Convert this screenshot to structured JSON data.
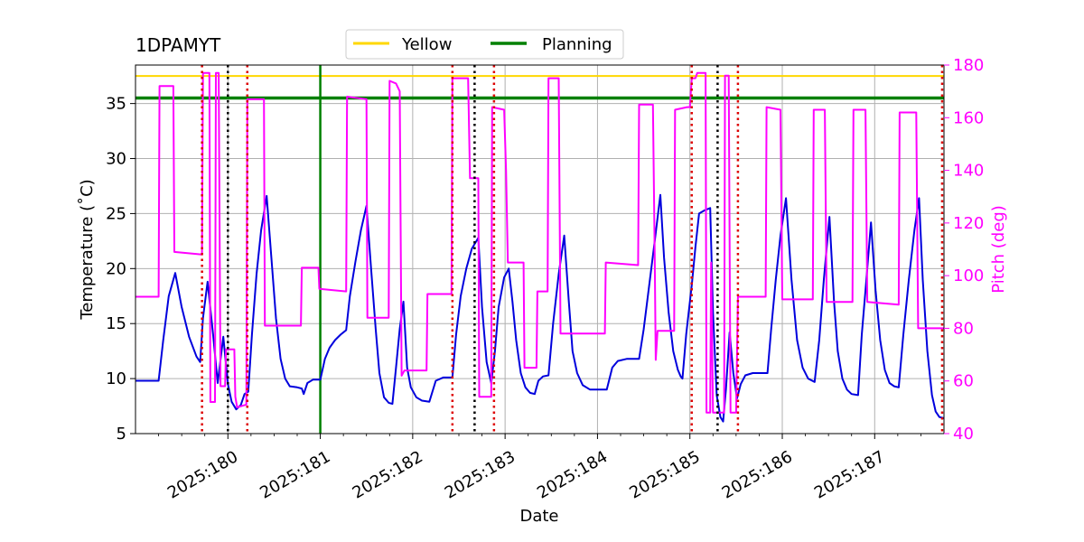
{
  "chart_data": {
    "type": "line",
    "title": "1DPAMYT",
    "xlabel": "Date",
    "ylabel_left": "Temperature ($^\\circ$C)",
    "ylabel_left_display": "Temperature (˚C)",
    "ylabel_right": "Pitch (deg)",
    "xlim": [
      179.0,
      187.75
    ],
    "ylim_left": [
      5,
      38.5
    ],
    "ylim_right": [
      40,
      180
    ],
    "grid": true,
    "legend_position": "top-center",
    "x_ticks": [
      {
        "value": 180,
        "label": "2025:180"
      },
      {
        "value": 181,
        "label": "2025:181"
      },
      {
        "value": 182,
        "label": "2025:182"
      },
      {
        "value": 183,
        "label": "2025:183"
      },
      {
        "value": 184,
        "label": "2025:184"
      },
      {
        "value": 185,
        "label": "2025:185"
      },
      {
        "value": 186,
        "label": "2025:186"
      },
      {
        "value": 187,
        "label": "2025:187"
      }
    ],
    "y_left_ticks": [
      5,
      10,
      15,
      20,
      25,
      30,
      35
    ],
    "y_right_ticks": [
      40,
      60,
      80,
      100,
      120,
      140,
      160,
      180
    ],
    "colors": {
      "temperature": "#0000dd",
      "pitch": "#ff00ff",
      "yellow": "#ffd700",
      "planning": "#008000",
      "red_marker": "#dd0000",
      "black_marker": "#000000"
    },
    "legend": [
      {
        "label": "Yellow",
        "color": "#ffd700"
      },
      {
        "label": "Planning",
        "color": "#008000"
      }
    ],
    "limits": {
      "yellow": 37.5,
      "planning": 35.5
    },
    "planning_time": 181.0,
    "red_markers": [
      179.72,
      180.21,
      182.43,
      182.88,
      185.02,
      185.52,
      187.73
    ],
    "black_markers": [
      180.0,
      182.67,
      185.3
    ],
    "series": [
      {
        "name": "Temperature",
        "axis": "left",
        "points": [
          [
            179.0,
            9.8
          ],
          [
            179.25,
            9.8
          ],
          [
            179.3,
            13.5
          ],
          [
            179.36,
            17.5
          ],
          [
            179.43,
            19.6
          ],
          [
            179.5,
            16.5
          ],
          [
            179.58,
            13.8
          ],
          [
            179.66,
            12.0
          ],
          [
            179.7,
            11.5
          ],
          [
            179.73,
            15.5
          ],
          [
            179.78,
            18.8
          ],
          [
            179.84,
            14.0
          ],
          [
            179.89,
            9.6
          ],
          [
            179.95,
            13.8
          ],
          [
            180.0,
            9.5
          ],
          [
            180.04,
            7.9
          ],
          [
            180.09,
            7.2
          ],
          [
            180.14,
            7.6
          ],
          [
            180.18,
            8.6
          ],
          [
            180.22,
            8.8
          ],
          [
            180.26,
            14.0
          ],
          [
            180.31,
            19.5
          ],
          [
            180.36,
            23.5
          ],
          [
            180.42,
            26.6
          ],
          [
            180.47,
            21.0
          ],
          [
            180.52,
            15.5
          ],
          [
            180.57,
            11.8
          ],
          [
            180.62,
            10.0
          ],
          [
            180.67,
            9.3
          ],
          [
            180.75,
            9.2
          ],
          [
            180.8,
            9.1
          ],
          [
            180.82,
            8.6
          ],
          [
            180.86,
            9.6
          ],
          [
            180.92,
            9.9
          ],
          [
            181.0,
            9.9
          ],
          [
            181.05,
            11.8
          ],
          [
            181.1,
            12.8
          ],
          [
            181.16,
            13.5
          ],
          [
            181.22,
            14.0
          ],
          [
            181.28,
            14.4
          ],
          [
            181.32,
            17.5
          ],
          [
            181.38,
            20.6
          ],
          [
            181.44,
            23.5
          ],
          [
            181.5,
            25.7
          ],
          [
            181.55,
            20.0
          ],
          [
            181.6,
            14.5
          ],
          [
            181.64,
            10.5
          ],
          [
            181.69,
            8.3
          ],
          [
            181.74,
            7.8
          ],
          [
            181.78,
            7.7
          ],
          [
            181.82,
            11.0
          ],
          [
            181.86,
            14.5
          ],
          [
            181.9,
            17.0
          ],
          [
            181.94,
            11.0
          ],
          [
            181.98,
            9.2
          ],
          [
            182.04,
            8.3
          ],
          [
            182.1,
            8.0
          ],
          [
            182.18,
            7.9
          ],
          [
            182.25,
            9.8
          ],
          [
            182.33,
            10.1
          ],
          [
            182.43,
            10.1
          ],
          [
            182.47,
            14.0
          ],
          [
            182.52,
            17.5
          ],
          [
            182.58,
            20.0
          ],
          [
            182.64,
            21.8
          ],
          [
            182.71,
            22.8
          ],
          [
            182.75,
            16.5
          ],
          [
            182.8,
            11.5
          ],
          [
            182.85,
            9.6
          ],
          [
            182.89,
            12.5
          ],
          [
            182.93,
            16.5
          ],
          [
            182.99,
            19.2
          ],
          [
            183.04,
            20.0
          ],
          [
            183.08,
            17.0
          ],
          [
            183.12,
            13.5
          ],
          [
            183.17,
            10.5
          ],
          [
            183.22,
            9.2
          ],
          [
            183.27,
            8.7
          ],
          [
            183.32,
            8.6
          ],
          [
            183.36,
            9.8
          ],
          [
            183.41,
            10.2
          ],
          [
            183.47,
            10.3
          ],
          [
            183.52,
            15.0
          ],
          [
            183.58,
            19.5
          ],
          [
            183.64,
            23.0
          ],
          [
            183.69,
            17.0
          ],
          [
            183.73,
            12.5
          ],
          [
            183.78,
            10.5
          ],
          [
            183.84,
            9.4
          ],
          [
            183.92,
            9.0
          ],
          [
            184.0,
            9.0
          ],
          [
            184.1,
            9.0
          ],
          [
            184.16,
            11.0
          ],
          [
            184.22,
            11.6
          ],
          [
            184.32,
            11.8
          ],
          [
            184.45,
            11.8
          ],
          [
            184.5,
            14.5
          ],
          [
            184.56,
            18.5
          ],
          [
            184.62,
            22.5
          ],
          [
            184.68,
            26.7
          ],
          [
            184.72,
            21.0
          ],
          [
            184.77,
            16.0
          ],
          [
            184.82,
            12.5
          ],
          [
            184.87,
            10.8
          ],
          [
            184.9,
            10.2
          ],
          [
            184.92,
            10.0
          ],
          [
            184.96,
            14.0
          ],
          [
            185.02,
            18.5
          ],
          [
            185.06,
            22.0
          ],
          [
            185.1,
            25.0
          ],
          [
            185.16,
            25.3
          ],
          [
            185.22,
            25.5
          ],
          [
            185.25,
            16.0
          ],
          [
            185.29,
            8.5
          ],
          [
            185.33,
            6.5
          ],
          [
            185.36,
            6.1
          ],
          [
            185.39,
            9.0
          ],
          [
            185.43,
            14.2
          ],
          [
            185.47,
            10.5
          ],
          [
            185.51,
            8.2
          ],
          [
            185.55,
            9.5
          ],
          [
            185.6,
            10.3
          ],
          [
            185.68,
            10.5
          ],
          [
            185.84,
            10.5
          ],
          [
            185.88,
            14.5
          ],
          [
            185.93,
            19.0
          ],
          [
            185.98,
            23.0
          ],
          [
            186.04,
            26.4
          ],
          [
            186.1,
            19.0
          ],
          [
            186.16,
            13.5
          ],
          [
            186.22,
            11.0
          ],
          [
            186.28,
            10.0
          ],
          [
            186.35,
            9.7
          ],
          [
            186.4,
            13.5
          ],
          [
            186.45,
            19.0
          ],
          [
            186.51,
            24.7
          ],
          [
            186.56,
            17.0
          ],
          [
            186.6,
            12.5
          ],
          [
            186.65,
            10.0
          ],
          [
            186.7,
            9.0
          ],
          [
            186.75,
            8.6
          ],
          [
            186.82,
            8.5
          ],
          [
            186.86,
            14.0
          ],
          [
            186.91,
            19.0
          ],
          [
            186.96,
            24.2
          ],
          [
            187.01,
            18.0
          ],
          [
            187.06,
            13.5
          ],
          [
            187.11,
            10.8
          ],
          [
            187.16,
            9.6
          ],
          [
            187.21,
            9.3
          ],
          [
            187.26,
            9.2
          ],
          [
            187.31,
            14.0
          ],
          [
            187.37,
            19.0
          ],
          [
            187.43,
            23.5
          ],
          [
            187.48,
            26.4
          ],
          [
            187.52,
            19.0
          ],
          [
            187.57,
            12.5
          ],
          [
            187.62,
            8.5
          ],
          [
            187.66,
            7.0
          ],
          [
            187.7,
            6.5
          ],
          [
            187.75,
            6.4
          ]
        ]
      },
      {
        "name": "Pitch",
        "axis": "right",
        "points": [
          [
            179.0,
            92
          ],
          [
            179.25,
            92
          ],
          [
            179.26,
            172
          ],
          [
            179.41,
            172
          ],
          [
            179.42,
            109
          ],
          [
            179.72,
            108
          ],
          [
            179.73,
            177
          ],
          [
            179.8,
            177
          ],
          [
            179.81,
            52
          ],
          [
            179.86,
            52
          ],
          [
            179.87,
            177
          ],
          [
            179.9,
            177
          ],
          [
            179.92,
            58
          ],
          [
            179.97,
            58
          ],
          [
            179.98,
            72
          ],
          [
            180.07,
            72
          ],
          [
            180.08,
            54
          ],
          [
            180.1,
            50
          ],
          [
            180.2,
            51
          ],
          [
            180.21,
            167
          ],
          [
            180.39,
            167
          ],
          [
            180.4,
            81
          ],
          [
            180.79,
            81
          ],
          [
            180.8,
            103
          ],
          [
            180.98,
            103
          ],
          [
            180.99,
            95
          ],
          [
            181.28,
            94
          ],
          [
            181.29,
            168
          ],
          [
            181.5,
            167
          ],
          [
            181.51,
            84
          ],
          [
            181.74,
            84
          ],
          [
            181.75,
            174
          ],
          [
            181.82,
            173
          ],
          [
            181.86,
            170
          ],
          [
            181.88,
            62
          ],
          [
            181.91,
            64
          ],
          [
            182.15,
            64
          ],
          [
            182.16,
            93
          ],
          [
            182.42,
            93
          ],
          [
            182.43,
            175
          ],
          [
            182.6,
            175
          ],
          [
            182.62,
            137
          ],
          [
            182.66,
            137
          ],
          [
            182.71,
            137
          ],
          [
            182.72,
            54
          ],
          [
            182.85,
            54
          ],
          [
            182.86,
            164
          ],
          [
            182.99,
            163
          ],
          [
            183.01,
            140
          ],
          [
            183.03,
            105
          ],
          [
            183.2,
            105
          ],
          [
            183.21,
            65
          ],
          [
            183.34,
            65
          ],
          [
            183.35,
            94
          ],
          [
            183.46,
            94
          ],
          [
            183.47,
            175
          ],
          [
            183.58,
            175
          ],
          [
            183.6,
            78
          ],
          [
            184.0,
            78
          ],
          [
            184.08,
            78
          ],
          [
            184.09,
            105
          ],
          [
            184.44,
            104
          ],
          [
            184.45,
            165
          ],
          [
            184.6,
            165
          ],
          [
            184.62,
            107
          ],
          [
            184.63,
            68
          ],
          [
            184.65,
            79
          ],
          [
            184.83,
            79
          ],
          [
            184.84,
            163
          ],
          [
            184.97,
            164
          ],
          [
            185.0,
            164
          ],
          [
            185.02,
            175
          ],
          [
            185.06,
            175
          ],
          [
            185.08,
            177
          ],
          [
            185.17,
            177
          ],
          [
            185.18,
            48
          ],
          [
            185.22,
            48
          ],
          [
            185.23,
            105
          ],
          [
            185.25,
            48
          ],
          [
            185.37,
            48
          ],
          [
            185.38,
            176
          ],
          [
            185.42,
            176
          ],
          [
            185.44,
            48
          ],
          [
            185.5,
            48
          ],
          [
            185.52,
            92
          ],
          [
            185.82,
            92
          ],
          [
            185.83,
            164
          ],
          [
            185.98,
            163
          ],
          [
            186.0,
            91
          ],
          [
            186.33,
            91
          ],
          [
            186.34,
            163
          ],
          [
            186.46,
            163
          ],
          [
            186.48,
            90
          ],
          [
            186.76,
            90
          ],
          [
            186.77,
            163
          ],
          [
            186.9,
            163
          ],
          [
            186.92,
            90
          ],
          [
            187.26,
            89
          ],
          [
            187.27,
            162
          ],
          [
            187.45,
            162
          ],
          [
            187.47,
            80
          ],
          [
            187.75,
            80
          ]
        ]
      }
    ]
  }
}
